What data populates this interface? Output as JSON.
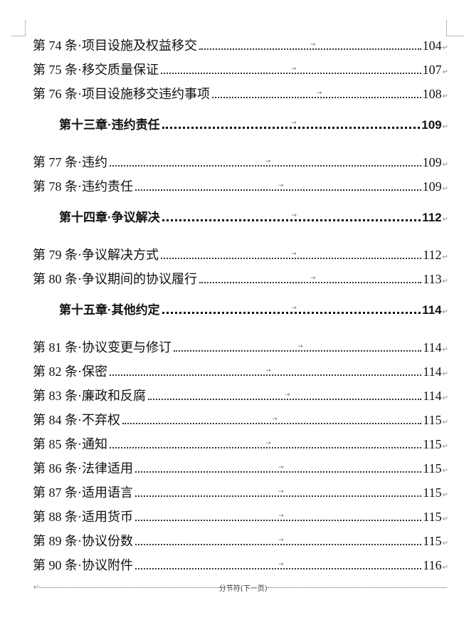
{
  "toc": [
    {
      "type": "article",
      "label": "第 74 条·项目设施及权益移交",
      "page": "104"
    },
    {
      "type": "article",
      "label": "第 75 条·移交质量保证",
      "page": "107"
    },
    {
      "type": "article",
      "label": "第 76 条·项目设施移交违约事项",
      "page": "108"
    },
    {
      "type": "chapter",
      "label": "第十三章·违约责任",
      "page": "109"
    },
    {
      "type": "article",
      "label": "第 77 条·违约",
      "page": "109"
    },
    {
      "type": "article",
      "label": "第 78 条·违约责任",
      "page": "109"
    },
    {
      "type": "chapter",
      "label": "第十四章·争议解决",
      "page": "112"
    },
    {
      "type": "article",
      "label": "第 79 条·争议解决方式",
      "page": "112"
    },
    {
      "type": "article",
      "label": "第 80 条·争议期间的协议履行",
      "page": "113"
    },
    {
      "type": "chapter",
      "label": "第十五章·其他约定",
      "page": "114"
    },
    {
      "type": "article",
      "label": "第 81 条·协议变更与修订",
      "page": "114"
    },
    {
      "type": "article",
      "label": "第 82 条·保密",
      "page": "114"
    },
    {
      "type": "article",
      "label": "第 83 条·廉政和反腐",
      "page": "114"
    },
    {
      "type": "article",
      "label": "第 84 条·不弃权",
      "page": "115"
    },
    {
      "type": "article",
      "label": "第 85 条·通知",
      "page": "115"
    },
    {
      "type": "article",
      "label": "第 86 条·法律适用",
      "page": "115"
    },
    {
      "type": "article",
      "label": "第 87 条·适用语言",
      "page": "115"
    },
    {
      "type": "article",
      "label": "第 88 条·适用货币",
      "page": "115"
    },
    {
      "type": "article",
      "label": "第 89 条·协议份数",
      "page": "115"
    },
    {
      "type": "article",
      "label": "第 90 条·协议附件",
      "page": "116"
    }
  ],
  "marks": {
    "paragraph": "↵",
    "tab": "→"
  },
  "section_break": "分节符(下一页)"
}
